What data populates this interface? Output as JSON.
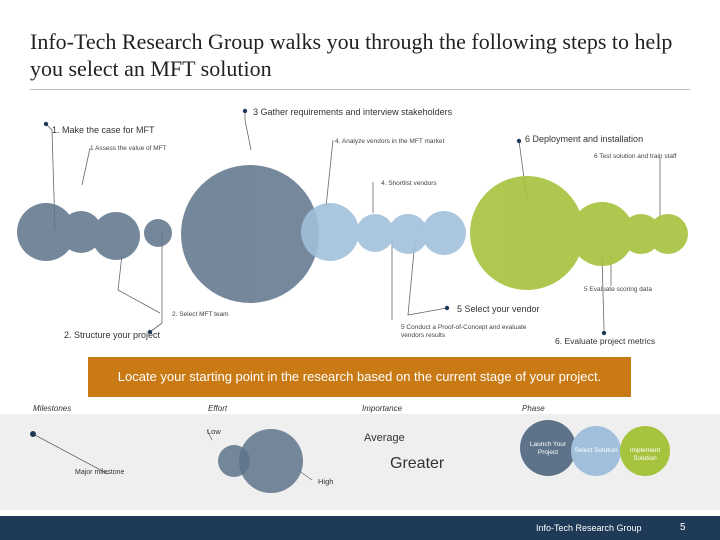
{
  "title": "Info-Tech Research Group walks you through the following steps to help you select an MFT solution",
  "diagram": {
    "label_gather": "3 Gather requirements and interview stakeholders",
    "label_case": "1. Make the case for MFT",
    "label_assess": "1 Assess the value of MFT",
    "label_analyze": "4. Analyze vendors in the MFT market",
    "label_deploy": "6 Deployment and installation",
    "label_test": "6 Test solution and train staff",
    "label_shortlist": "4. Shortlist vendors",
    "label_evaluate_scoring": "5 Evaluate scoring data",
    "label_select_team": "2. Select MFT team",
    "label_select_vendor": "5 Select your vendor",
    "label_poc": "5 Conduct a Proof-of-Concept and evaluate vendors results",
    "label_structure": "2. Structure your project",
    "label_metrics": "6. Evaluate project metrics",
    "colors": {
      "slate": "#5e7389",
      "blue": "#a2c0dc",
      "green": "#a6c33d"
    }
  },
  "banner": {
    "text": "Locate your starting point in the research based on the current stage of your project."
  },
  "legend": {
    "headers": {
      "milestones": "Milestones",
      "effort": "Effort",
      "importance": "Importance",
      "phase": "Phase"
    },
    "major_milestone": "Major milestone",
    "low": "Low",
    "high": "High",
    "average": "Average",
    "greater": "Greater",
    "phases": [
      "Launch Your Project",
      "Select Solution",
      "Implement Solution"
    ]
  },
  "footer": {
    "org": "Info-Tech Research Group",
    "page": "5"
  }
}
